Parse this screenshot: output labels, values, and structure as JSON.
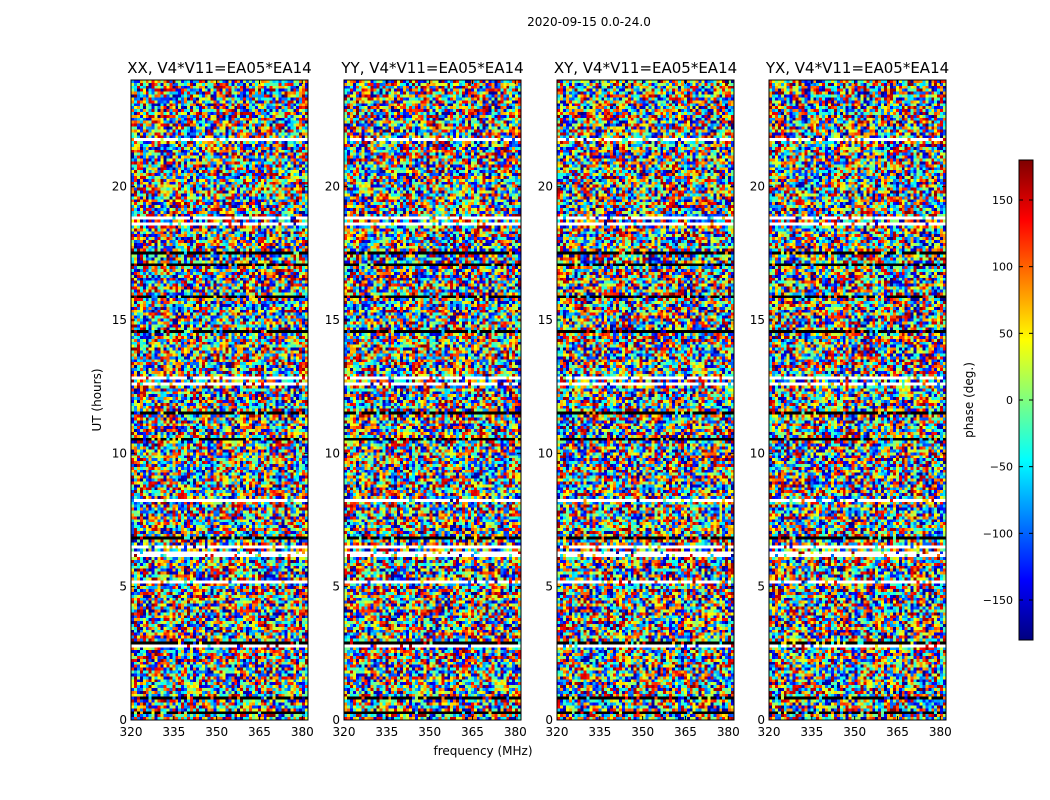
{
  "figure": {
    "suptitle": "2020-09-15 0.0-24.0",
    "xlabel": "frequency (MHz)",
    "ylabel": "UT (hours)"
  },
  "chart_data": {
    "type": "heatmap",
    "title": "2020-09-15 0.0-24.0",
    "xlabel": "frequency (MHz)",
    "ylabel": "UT (hours)",
    "xlim": [
      320,
      382
    ],
    "ylim": [
      0,
      24
    ],
    "x_ticks": [
      320,
      335,
      350,
      365,
      380
    ],
    "y_ticks": [
      0,
      5,
      10,
      15,
      20
    ],
    "panels": [
      {
        "title": "XX, V4*V11=EA05*EA14"
      },
      {
        "title": "YY, V4*V11=EA05*EA14"
      },
      {
        "title": "XY, V4*V11=EA05*EA14"
      },
      {
        "title": "YX, V4*V11=EA05*EA14"
      }
    ],
    "colorbar": {
      "label": "phase (deg.)",
      "range": [
        -180,
        180
      ],
      "ticks": [
        150,
        100,
        50,
        0,
        -50,
        -100,
        -150
      ],
      "colormap": "jet"
    }
  },
  "colors": {
    "jet": [
      "#00007f",
      "#0000ff",
      "#007fff",
      "#00ffff",
      "#7fff7f",
      "#ffff00",
      "#ff7f00",
      "#ff0000",
      "#7f0000"
    ],
    "blank_row": "#ffffff",
    "flag_row": "#000000"
  }
}
